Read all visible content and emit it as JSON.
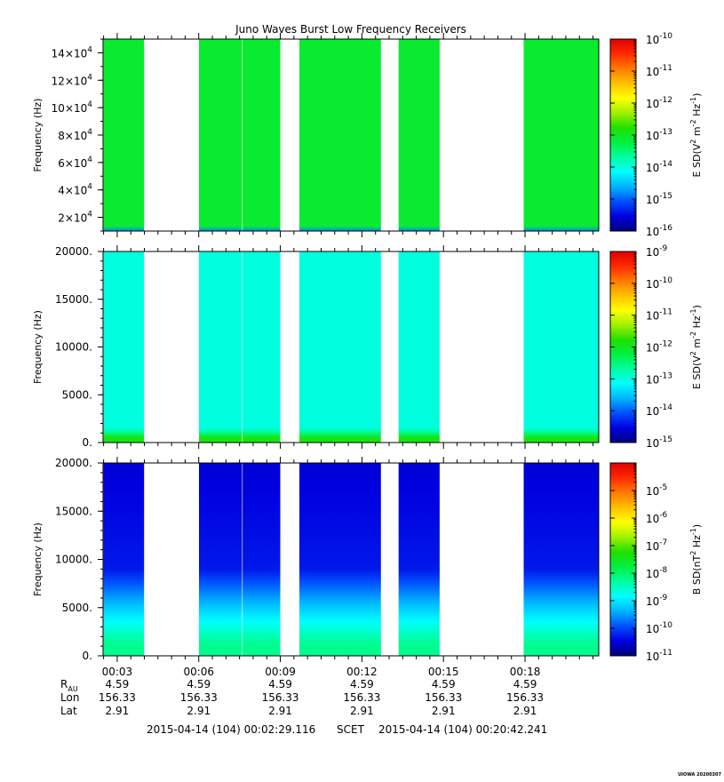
{
  "title": "Juno Waves Burst Low Frequency Receivers",
  "footer": {
    "start_time": "2015-04-14 (104) 00:02:29.116",
    "scet_label": "SCET",
    "end_time": "2015-04-14 (104) 00:20:42.241",
    "stamp": "UIOWA 20200307"
  },
  "ephemeris": {
    "time_ticks": [
      "00:03",
      "00:06",
      "00:09",
      "00:12",
      "00:15",
      "00:18"
    ],
    "rows": [
      {
        "label": "R",
        "sub": "AU",
        "values": [
          "4.59",
          "4.59",
          "4.59",
          "4.59",
          "4.59",
          "4.59"
        ]
      },
      {
        "label": "Lon",
        "sub": "",
        "values": [
          "156.33",
          "156.33",
          "156.33",
          "156.33",
          "156.33",
          "156.33"
        ]
      },
      {
        "label": "Lat",
        "sub": "",
        "values": [
          "2.91",
          "2.91",
          "2.91",
          "2.91",
          "2.91",
          "2.91"
        ]
      }
    ]
  },
  "colors": {
    "colormap": [
      "#00007a",
      "#0000e0",
      "#0050ff",
      "#00b4ff",
      "#00ffff",
      "#00ffa0",
      "#00f040",
      "#20e000",
      "#a0f000",
      "#ffff00",
      "#ffc000",
      "#ff7a00",
      "#ff2a00",
      "#e00000"
    ],
    "burst_gaps": "#ffffff"
  },
  "chart_data": [
    {
      "type": "heatmap",
      "title": "Juno Waves Burst Low Frequency Receivers",
      "xlabel": "",
      "ylabel": "Frequency (Hz)",
      "ylim": [
        10000,
        150000
      ],
      "yticks": [
        {
          "mant": "2",
          "exp": "4"
        },
        {
          "mant": "4",
          "exp": "4"
        },
        {
          "mant": "6",
          "exp": "4"
        },
        {
          "mant": "8",
          "exp": "4"
        },
        {
          "mant": "10",
          "exp": "4"
        },
        {
          "mant": "12",
          "exp": "4"
        },
        {
          "mant": "14",
          "exp": "4"
        }
      ],
      "colorbar": {
        "label": "E SD",
        "unit_base": "V",
        "unit_exp": "2",
        "unit_mid": "m",
        "unit_mid_exp": "-2",
        "unit_tail": "Hz",
        "unit_tail_exp": "-1",
        "range_exp": [
          -16,
          -10
        ],
        "ticks": [
          "-16",
          "-15",
          "-14",
          "-13",
          "-12",
          "-11",
          "-10"
        ]
      },
      "segments_minutes": [
        [
          2.5,
          3.99
        ],
        [
          6.01,
          9.0
        ],
        [
          9.7,
          12.7
        ],
        [
          13.35,
          14.86
        ],
        [
          17.95,
          20.71
        ]
      ],
      "typical_log_level": -13.1,
      "low_edge_log_level": -14.8
    },
    {
      "type": "heatmap",
      "xlabel": "",
      "ylabel": "Frequency (Hz)",
      "ylim": [
        0,
        20000
      ],
      "yticks": [
        "0.",
        "5000.",
        "10000.",
        "15000.",
        "20000."
      ],
      "colorbar": {
        "label": "E SD",
        "unit_base": "V",
        "unit_exp": "2",
        "unit_mid": "m",
        "unit_mid_exp": "-2",
        "unit_tail": "Hz",
        "unit_tail_exp": "-1",
        "range_exp": [
          -15,
          -9
        ],
        "ticks": [
          "-15",
          "-14",
          "-13",
          "-12",
          "-11",
          "-10",
          "-9"
        ]
      },
      "segments_minutes": [
        [
          2.5,
          3.99
        ],
        [
          6.01,
          9.0
        ],
        [
          9.7,
          12.7
        ],
        [
          13.35,
          14.86
        ],
        [
          17.95,
          20.71
        ]
      ],
      "typical_log_level": -13.0,
      "low_freq_log_level": -11.8
    },
    {
      "type": "heatmap",
      "xlabel": "",
      "ylabel": "Frequency (Hz)",
      "ylim": [
        0,
        20000
      ],
      "yticks": [
        "0.",
        "5000.",
        "10000.",
        "15000.",
        "20000."
      ],
      "colorbar": {
        "label": "B SD",
        "unit_base": "nT",
        "unit_exp": "2",
        "unit_mid": "",
        "unit_mid_exp": "",
        "unit_tail": "Hz",
        "unit_tail_exp": "-1",
        "range_exp": [
          -11,
          -4
        ],
        "ticks": [
          "-11",
          "-10",
          "-9",
          "-8",
          "-7",
          "-6",
          "-5"
        ]
      },
      "segments_minutes": [
        [
          2.5,
          3.99
        ],
        [
          6.01,
          9.0
        ],
        [
          9.7,
          12.7
        ],
        [
          13.35,
          14.86
        ],
        [
          17.95,
          20.71
        ]
      ],
      "high_freq_log_level": -10.3,
      "low_freq_log_level": -8.2
    }
  ],
  "x_axis": {
    "xlim_minutes": [
      2.48,
      20.71
    ],
    "major_ticks_minutes": [
      3,
      6,
      9,
      12,
      15,
      18
    ]
  }
}
